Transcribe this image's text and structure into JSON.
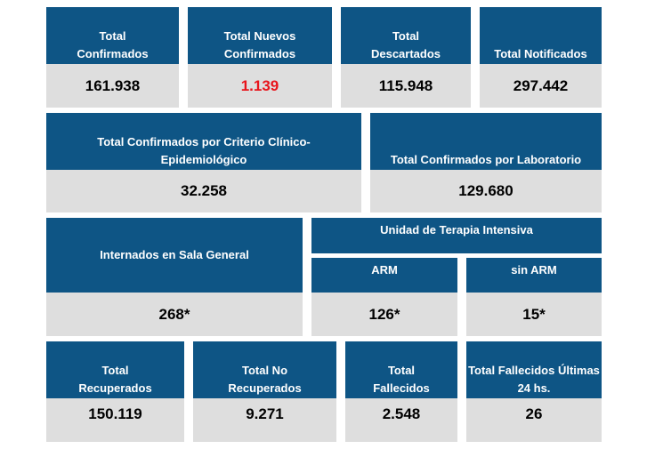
{
  "row1": [
    {
      "label_lines": [
        "Total",
        "Confirmados"
      ],
      "value": "161.938"
    },
    {
      "label_lines": [
        "Total Nuevos",
        "Confirmados"
      ],
      "value": "1.139",
      "value_color": "#e8141b"
    },
    {
      "label_lines": [
        "Total",
        "Descartados"
      ],
      "value": "115.948"
    },
    {
      "label_lines": [
        "Total Notificados"
      ],
      "value": "297.442"
    }
  ],
  "row2": [
    {
      "label_lines": [
        "Total Confirmados por Criterio Clínico-",
        "Epidemiológico"
      ],
      "value": "32.258"
    },
    {
      "label_lines": [
        "Total Confirmados por Laboratorio"
      ],
      "value": "129.680"
    }
  ],
  "row3": {
    "sala_general": {
      "label": "Internados en Sala General",
      "value": "268*"
    },
    "uti": {
      "label": "Unidad de Terapia Intensiva",
      "arm": {
        "label": "ARM",
        "value": "126*"
      },
      "sin_arm": {
        "label": "sin ARM",
        "value": "15*"
      }
    }
  },
  "row4": [
    {
      "label_lines": [
        "Total",
        "Recuperados"
      ],
      "value": "150.119"
    },
    {
      "label_lines": [
        "Total No",
        "Recuperados"
      ],
      "value": "9.271"
    },
    {
      "label_lines": [
        "Total",
        "Fallecidos"
      ],
      "value": "2.548"
    },
    {
      "label_lines": [
        "Total Fallecidos Últimas",
        "24 hs."
      ],
      "value": "26"
    }
  ],
  "colors": {
    "header_bg": "#0e5585",
    "value_bg": "#dedede",
    "highlight": "#e8141b"
  }
}
